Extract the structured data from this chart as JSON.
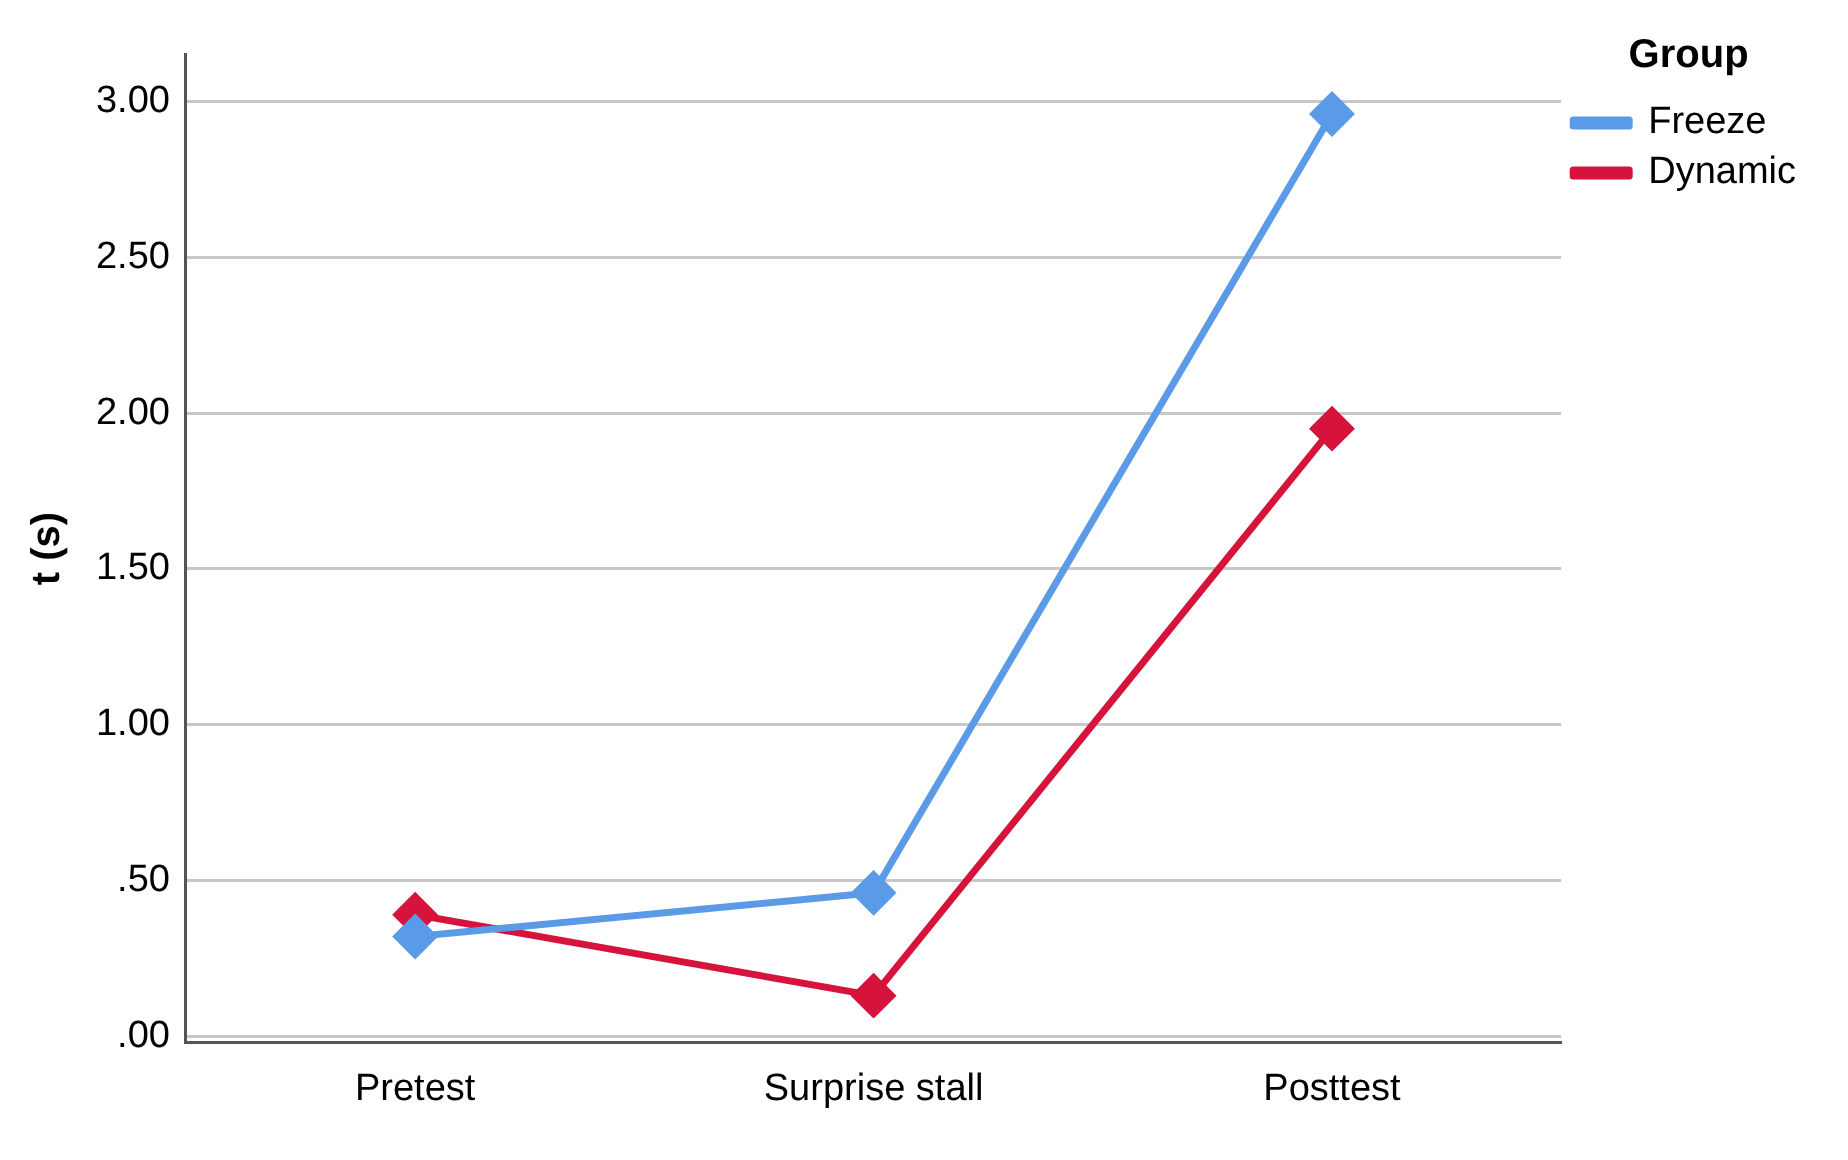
{
  "chart_data": {
    "type": "line",
    "ylabel": "t (s)",
    "legend_title": "Group",
    "categories": [
      "Pretest",
      "Surprise stall",
      "Posttest"
    ],
    "series": [
      {
        "name": "Freeze",
        "color": "#5b9ae6",
        "values": [
          0.32,
          0.46,
          2.96
        ]
      },
      {
        "name": "Dynamic",
        "color": "#d5133b",
        "values": [
          0.39,
          0.13,
          1.95
        ]
      }
    ],
    "ylim": [
      -0.02,
      3.15
    ],
    "yticks": [
      {
        "value": 0,
        "label": ".00"
      },
      {
        "value": 0.5,
        "label": ".50"
      },
      {
        "value": 1,
        "label": "1.00"
      },
      {
        "value": 1.5,
        "label": "1.50"
      },
      {
        "value": 2,
        "label": "2.00"
      },
      {
        "value": 2.5,
        "label": "2.50"
      },
      {
        "value": 3,
        "label": "3.00"
      }
    ],
    "grid": "y",
    "legend": "top right",
    "marker": "diamond",
    "line_style": "solid"
  }
}
